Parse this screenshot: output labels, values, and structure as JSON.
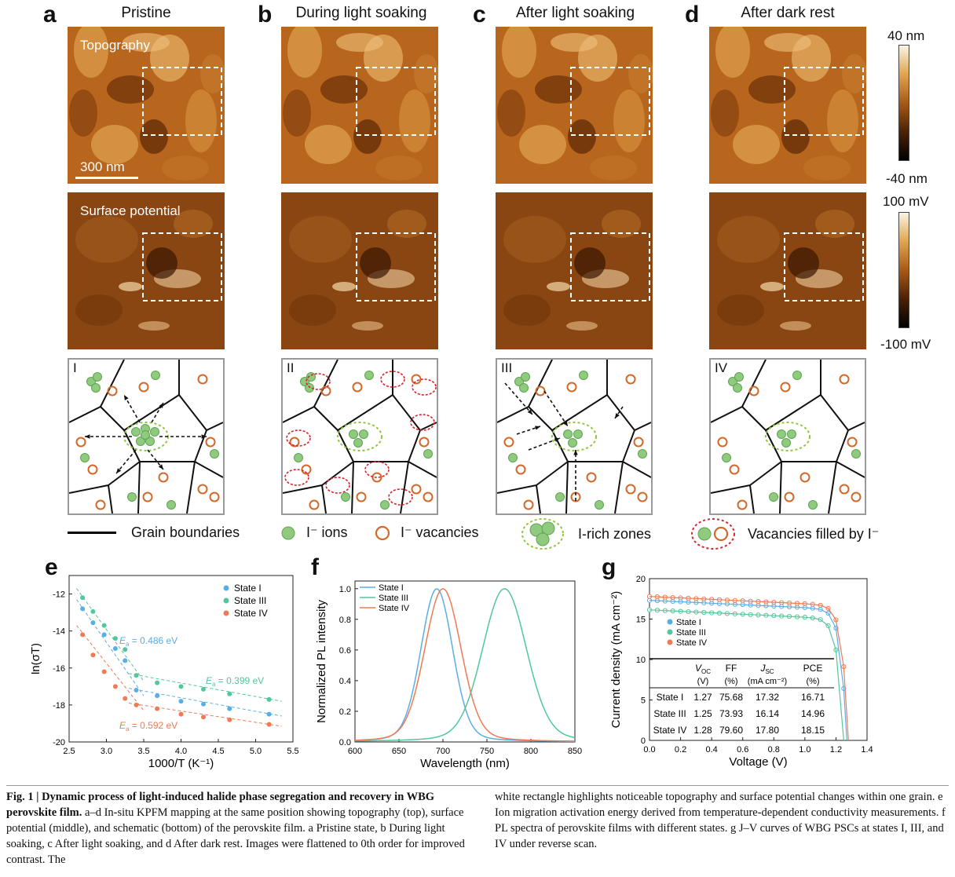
{
  "panels": [
    {
      "letter": "a",
      "title": "Pristine",
      "roman": "I"
    },
    {
      "letter": "b",
      "title": "During light soaking",
      "roman": "II"
    },
    {
      "letter": "c",
      "title": "After light soaking",
      "roman": "III"
    },
    {
      "letter": "d",
      "title": "After dark rest",
      "roman": "IV"
    }
  ],
  "overlays": {
    "topography": "Topography",
    "surface_potential": "Surface potential",
    "scalebar": "300 nm"
  },
  "colorbars": {
    "topo": {
      "top": "40 nm",
      "bottom": "-40 nm"
    },
    "pot": {
      "top": "100 mV",
      "bottom": "-100 mV"
    }
  },
  "legend": {
    "grain_boundaries": "Grain boundaries",
    "ions": "I⁻ ions",
    "vacancies": "I⁻ vacancies",
    "rich_zones": "I-rich zones",
    "filled": "Vacancies filled by I⁻"
  },
  "colors": {
    "ion": "#8fca7e",
    "vacancy": "#d2692b",
    "zone": "#8ec63f",
    "filled": "#d9232e",
    "stateI": "#5aaee6",
    "stateIII": "#52c79a",
    "stateIV": "#ee7b55"
  },
  "chart_data": [
    {
      "type": "scatter",
      "panel": "e",
      "xlabel": "1000/T (K⁻¹)",
      "ylabel": "ln(σT)",
      "xlim": [
        2.5,
        5.5
      ],
      "ylim": [
        -20,
        -11
      ],
      "xticks": [
        "2.5",
        "3.0",
        "3.5",
        "4.0",
        "4.5",
        "5.0",
        "5.5"
      ],
      "yticks": [
        "-12",
        "-14",
        "-16",
        "-18",
        "-20"
      ],
      "series": [
        {
          "name": "State I",
          "x": [
            2.68,
            2.82,
            2.97,
            3.12,
            3.25,
            3.4,
            3.68,
            4.0,
            4.3,
            4.65,
            5.18
          ],
          "y": [
            -12.8,
            -13.55,
            -14.2,
            -14.95,
            -15.6,
            -17.2,
            -17.5,
            -17.8,
            -17.95,
            -18.2,
            -18.5
          ]
        },
        {
          "name": "State III",
          "x": [
            2.68,
            2.82,
            2.97,
            3.12,
            3.25,
            3.4,
            3.68,
            4.0,
            4.3,
            4.65,
            5.18
          ],
          "y": [
            -12.2,
            -12.95,
            -13.7,
            -14.4,
            -15.0,
            -16.4,
            -16.8,
            -17.0,
            -17.15,
            -17.4,
            -17.7
          ]
        },
        {
          "name": "State IV",
          "x": [
            2.68,
            2.82,
            2.97,
            3.12,
            3.25,
            3.4,
            3.68,
            4.0,
            4.3,
            4.65,
            5.18
          ],
          "y": [
            -14.2,
            -15.3,
            -16.2,
            -17.0,
            -17.65,
            -18.0,
            -18.2,
            -18.5,
            -18.65,
            -18.8,
            -19.05
          ]
        }
      ],
      "annotations": [
        {
          "text": "E",
          "sub": "a",
          "value": " = 0.486 eV",
          "color": "#5aaee6"
        },
        {
          "text": "E",
          "sub": "a",
          "value": " = 0.399 eV",
          "color": "#52c79a"
        },
        {
          "text": "E",
          "sub": "a",
          "value": " = 0.592 eV",
          "color": "#ee7b55"
        }
      ]
    },
    {
      "type": "line",
      "panel": "f",
      "xlabel": "Wavelength (nm)",
      "ylabel": "Normalized PL intensity",
      "xlim": [
        600,
        850
      ],
      "ylim": [
        0,
        1.05
      ],
      "xticks": [
        "600",
        "650",
        "700",
        "750",
        "800",
        "850"
      ],
      "yticks": [
        "0.0",
        "0.2",
        "0.4",
        "0.6",
        "0.8",
        "1.0"
      ],
      "series": [
        {
          "name": "State I",
          "peak": 693,
          "fwhm": 42
        },
        {
          "name": "State III",
          "peak": 770,
          "fwhm": 58
        },
        {
          "name": "State IV",
          "peak": 700,
          "fwhm": 48
        }
      ]
    },
    {
      "type": "line",
      "panel": "g",
      "xlabel": "Voltage (V)",
      "ylabel": "Current density (mA cm⁻²)",
      "xlim": [
        0.0,
        1.4
      ],
      "ylim": [
        0,
        20
      ],
      "xticks": [
        "0.0",
        "0.2",
        "0.4",
        "0.6",
        "0.8",
        "1.0",
        "1.2",
        "1.4"
      ],
      "yticks": [
        "0",
        "5",
        "10",
        "15",
        "20"
      ],
      "series": [
        {
          "name": "State I",
          "voc": 1.27,
          "ff": "75.68",
          "jsc": 17.32,
          "pce": "16.71"
        },
        {
          "name": "State III",
          "voc": 1.25,
          "ff": "73.93",
          "jsc": 16.14,
          "pce": "14.96"
        },
        {
          "name": "State IV",
          "voc": 1.28,
          "ff": "79.60",
          "jsc": 17.8,
          "pce": "18.15"
        }
      ],
      "table": {
        "headers": [
          "",
          "V",
          "FF",
          "J",
          "PCE"
        ],
        "header_subs": [
          "",
          "OC",
          "",
          "SC",
          ""
        ],
        "units": [
          "",
          "(V)",
          "(%)",
          "(mA cm⁻²)",
          "(%)"
        ],
        "rows": [
          [
            "State I",
            "1.27",
            "75.68",
            "17.32",
            "16.71"
          ],
          [
            "State III",
            "1.25",
            "73.93",
            "16.14",
            "14.96"
          ],
          [
            "State IV",
            "1.28",
            "79.60",
            "17.80",
            "18.15"
          ]
        ]
      }
    }
  ],
  "caption": {
    "bold_lead": "Fig. 1 | Dynamic process of light-induced halide phase segregation and recovery in WBG perovskite film.",
    "text1": " a–d In-situ KPFM mapping at the same position showing topography (top), surface potential (middle), and schematic (bottom) of the perovskite film. a Pristine state, b During light soaking, c After light soaking, and d After dark rest. Images were flattened to 0th order for improved contrast. The",
    "text2": "white rectangle highlights noticeable topography and surface potential changes within one grain. e Ion migration activation energy derived from temperature-dependent conductivity measurements. f PL spectra of perovskite films with different states. g J–V curves of WBG PSCs at states I, III, and IV under reverse scan."
  }
}
